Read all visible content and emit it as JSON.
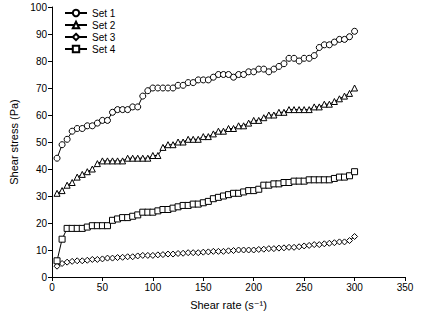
{
  "chart_data": {
    "type": "line",
    "xlabel": "Shear rate (s⁻¹)",
    "ylabel": "Shear stress (Pa)",
    "x": [
      5,
      10,
      15,
      20,
      25,
      30,
      35,
      40,
      45,
      50,
      55,
      60,
      65,
      70,
      75,
      80,
      85,
      90,
      95,
      100,
      105,
      110,
      115,
      120,
      125,
      130,
      135,
      140,
      145,
      150,
      155,
      160,
      165,
      170,
      175,
      180,
      185,
      190,
      195,
      200,
      205,
      210,
      215,
      220,
      225,
      230,
      235,
      240,
      245,
      250,
      255,
      260,
      265,
      270,
      275,
      280,
      285,
      290,
      295,
      300
    ],
    "series": [
      {
        "name": "Set 1",
        "color": "#000000",
        "marker": "circle",
        "values": [
          44,
          49,
          51,
          54,
          55,
          55,
          56,
          56,
          57,
          58,
          58,
          61,
          62,
          62,
          62,
          63,
          63,
          67,
          69,
          70,
          70,
          70,
          70,
          70,
          71,
          71,
          72,
          72,
          73,
          73,
          73,
          74,
          75,
          75,
          75,
          74,
          75,
          75,
          76,
          76,
          77,
          77,
          76,
          77,
          78,
          79,
          81,
          81,
          80,
          81,
          81,
          82,
          85,
          86,
          86,
          87,
          88,
          88,
          89,
          91
        ]
      },
      {
        "name": "Set 2",
        "color": "#000000",
        "marker": "triangle",
        "values": [
          31,
          32,
          34,
          35,
          37,
          38,
          39,
          40,
          42,
          43,
          43,
          43,
          43,
          43,
          44,
          44,
          44,
          44,
          44,
          45,
          45,
          48,
          49,
          49,
          50,
          50,
          51,
          51,
          51,
          52,
          52,
          53,
          54,
          54,
          55,
          55,
          56,
          56,
          57,
          58,
          58,
          59,
          60,
          60,
          61,
          61,
          62,
          62,
          62,
          62,
          62,
          63,
          63,
          64,
          64,
          65,
          66,
          67,
          68,
          70
        ]
      },
      {
        "name": "Set 3",
        "color": "#000000",
        "marker": "diamond",
        "values": [
          4,
          5,
          5.5,
          5.8,
          6,
          6,
          6.2,
          6.5,
          6.5,
          6.7,
          7,
          7,
          7.2,
          7.3,
          7.5,
          7.5,
          7.8,
          8,
          8,
          8,
          8.2,
          8.3,
          8.5,
          8.5,
          8.7,
          8.8,
          9,
          9,
          9,
          9.2,
          9.3,
          9.5,
          9.5,
          9.5,
          9.7,
          9.8,
          10,
          10,
          10,
          10,
          10.2,
          10.3,
          10.5,
          10.5,
          10.7,
          10.8,
          11,
          11,
          11.2,
          11.5,
          11.7,
          12,
          12,
          12.3,
          12.5,
          12.7,
          13,
          13,
          13.5,
          15
        ]
      },
      {
        "name": "Set 4",
        "color": "#000000",
        "marker": "square",
        "values": [
          6,
          14,
          18,
          18,
          18,
          18,
          18.5,
          19,
          19,
          19,
          19,
          21,
          21.5,
          22,
          22,
          22.5,
          23,
          24,
          24,
          24,
          24.5,
          25,
          25,
          25.5,
          26,
          26.5,
          26.5,
          27,
          27,
          27.5,
          28,
          29,
          29.5,
          30,
          30.5,
          31,
          31,
          31.5,
          32,
          32,
          32.5,
          34,
          34,
          34.5,
          34.5,
          35,
          35,
          35.5,
          35.5,
          35.5,
          36,
          36,
          36,
          36,
          36,
          36.5,
          37,
          37,
          37.5,
          39
        ]
      }
    ],
    "xlim": [
      0,
      350
    ],
    "xticks": [
      0,
      50,
      100,
      150,
      200,
      250,
      300,
      350
    ],
    "ylim": [
      0,
      100
    ],
    "yticks": [
      0,
      10,
      20,
      30,
      40,
      50,
      60,
      70,
      80,
      90,
      100
    ],
    "grid": false,
    "legend": "upper left"
  }
}
